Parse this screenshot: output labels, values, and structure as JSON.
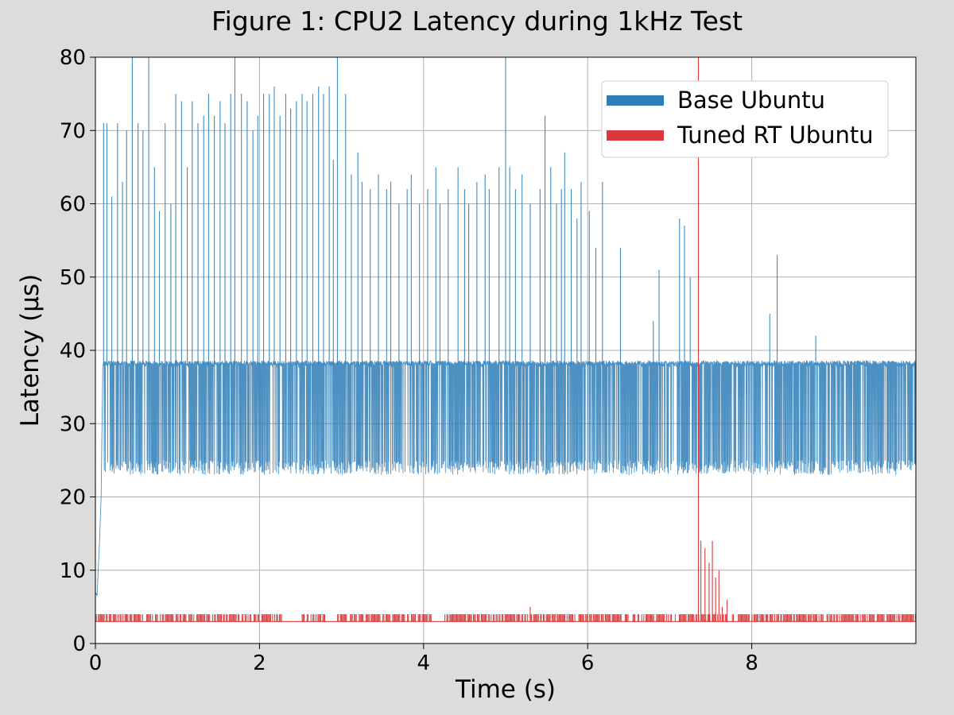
{
  "chart_data": {
    "type": "line",
    "title": "Figure 1: CPU2 Latency during 1kHz Test",
    "xlabel": "Time (s)",
    "ylabel": "Latency (µs)",
    "xlim": [
      0,
      10
    ],
    "ylim": [
      0,
      80
    ],
    "xticks": [
      "0",
      "2",
      "4",
      "6",
      "8"
    ],
    "yticks": [
      "0",
      "10",
      "20",
      "30",
      "40",
      "50",
      "60",
      "70",
      "80"
    ],
    "grid": true,
    "legend_position": "top-right",
    "series": [
      {
        "name": "Base Ubuntu",
        "color": "#2e7eb9",
        "baseline": [
          25,
          38
        ],
        "startup_ramp": [
          [
            0.0,
            7
          ],
          [
            0.02,
            6.5
          ],
          [
            0.05,
            14
          ],
          [
            0.07,
            20
          ],
          [
            0.09,
            38
          ]
        ],
        "spikes": [
          [
            0.1,
            71
          ],
          [
            0.14,
            71
          ],
          [
            0.2,
            61
          ],
          [
            0.27,
            71
          ],
          [
            0.33,
            63
          ],
          [
            0.38,
            70
          ],
          [
            0.45,
            80
          ],
          [
            0.52,
            71
          ],
          [
            0.58,
            70
          ],
          [
            0.65,
            80
          ],
          [
            0.72,
            65
          ],
          [
            0.78,
            59
          ],
          [
            0.85,
            71
          ],
          [
            0.92,
            60
          ],
          [
            0.98,
            75
          ],
          [
            1.05,
            74
          ],
          [
            1.12,
            65
          ],
          [
            1.18,
            74
          ],
          [
            1.25,
            71
          ],
          [
            1.32,
            72
          ],
          [
            1.38,
            75
          ],
          [
            1.45,
            72
          ],
          [
            1.52,
            74
          ],
          [
            1.58,
            71
          ],
          [
            1.65,
            75
          ],
          [
            1.7,
            80
          ],
          [
            1.78,
            75
          ],
          [
            1.85,
            74
          ],
          [
            1.92,
            70
          ],
          [
            1.98,
            72
          ],
          [
            2.05,
            75
          ],
          [
            2.12,
            75
          ],
          [
            2.18,
            76
          ],
          [
            2.25,
            72
          ],
          [
            2.32,
            75
          ],
          [
            2.38,
            73
          ],
          [
            2.45,
            74
          ],
          [
            2.52,
            75
          ],
          [
            2.58,
            74
          ],
          [
            2.65,
            75
          ],
          [
            2.72,
            76
          ],
          [
            2.78,
            75
          ],
          [
            2.85,
            76
          ],
          [
            2.9,
            66
          ],
          [
            2.95,
            80
          ],
          [
            3.05,
            75
          ],
          [
            3.12,
            64
          ],
          [
            3.2,
            67
          ],
          [
            3.25,
            63
          ],
          [
            3.35,
            62
          ],
          [
            3.45,
            64
          ],
          [
            3.55,
            62
          ],
          [
            3.6,
            63
          ],
          [
            3.7,
            60
          ],
          [
            3.8,
            62
          ],
          [
            3.85,
            64
          ],
          [
            3.95,
            60
          ],
          [
            4.05,
            62
          ],
          [
            4.15,
            65
          ],
          [
            4.2,
            60
          ],
          [
            4.3,
            62
          ],
          [
            4.42,
            65
          ],
          [
            4.5,
            62
          ],
          [
            4.55,
            60
          ],
          [
            4.65,
            63
          ],
          [
            4.75,
            64
          ],
          [
            4.8,
            62
          ],
          [
            4.92,
            65
          ],
          [
            5.0,
            80
          ],
          [
            5.05,
            65
          ],
          [
            5.12,
            62
          ],
          [
            5.2,
            64
          ],
          [
            5.3,
            60
          ],
          [
            5.42,
            62
          ],
          [
            5.48,
            72
          ],
          [
            5.55,
            65
          ],
          [
            5.62,
            60
          ],
          [
            5.68,
            62
          ],
          [
            5.72,
            67
          ],
          [
            5.8,
            62
          ],
          [
            5.87,
            58
          ],
          [
            5.92,
            63
          ],
          [
            6.02,
            59
          ],
          [
            6.1,
            54
          ],
          [
            6.18,
            63
          ],
          [
            6.4,
            54
          ],
          [
            6.8,
            44
          ],
          [
            6.87,
            51
          ],
          [
            7.12,
            58
          ],
          [
            7.18,
            57
          ],
          [
            7.25,
            50
          ],
          [
            8.22,
            45
          ],
          [
            8.31,
            53
          ],
          [
            8.78,
            42
          ]
        ]
      },
      {
        "name": "Tuned RT Ubuntu",
        "color": "#d9393b",
        "baseline": [
          3,
          4
        ],
        "gaps": [
          [
            2.3,
            2.5
          ],
          [
            2.8,
            2.95
          ],
          [
            4.1,
            4.25
          ],
          [
            6.5,
            6.55
          ],
          [
            7.7,
            7.75
          ]
        ],
        "spikes": [
          [
            5.3,
            5
          ],
          [
            7.35,
            80
          ],
          [
            7.38,
            14
          ],
          [
            7.43,
            13
          ],
          [
            7.48,
            11
          ],
          [
            7.52,
            14
          ],
          [
            7.56,
            9
          ],
          [
            7.6,
            10
          ],
          [
            7.64,
            5
          ],
          [
            7.7,
            6
          ]
        ]
      }
    ]
  }
}
